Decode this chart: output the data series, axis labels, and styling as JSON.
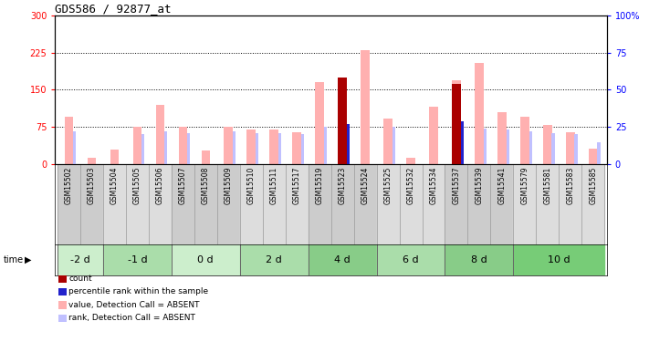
{
  "title": "GDS586 / 92877_at",
  "samples": [
    "GSM15502",
    "GSM15503",
    "GSM15504",
    "GSM15505",
    "GSM15506",
    "GSM15507",
    "GSM15508",
    "GSM15509",
    "GSM15510",
    "GSM15511",
    "GSM15517",
    "GSM15519",
    "GSM15523",
    "GSM15524",
    "GSM15525",
    "GSM15532",
    "GSM15534",
    "GSM15537",
    "GSM15539",
    "GSM15541",
    "GSM15579",
    "GSM15581",
    "GSM15583",
    "GSM15585"
  ],
  "time_groups": [
    {
      "label": "-2 d",
      "indices": [
        0,
        1
      ]
    },
    {
      "label": "-1 d",
      "indices": [
        2,
        3,
        4
      ]
    },
    {
      "label": "0 d",
      "indices": [
        5,
        6,
        7
      ]
    },
    {
      "label": "2 d",
      "indices": [
        8,
        9,
        10
      ]
    },
    {
      "label": "4 d",
      "indices": [
        11,
        12,
        13
      ]
    },
    {
      "label": "6 d",
      "indices": [
        14,
        15,
        16
      ]
    },
    {
      "label": "8 d",
      "indices": [
        17,
        18,
        19
      ]
    },
    {
      "label": "10 d",
      "indices": [
        20,
        21,
        22,
        23
      ]
    }
  ],
  "value_absent": [
    95,
    12,
    30,
    75,
    120,
    75,
    28,
    75,
    70,
    70,
    65,
    165,
    175,
    230,
    92,
    12,
    115,
    170,
    205,
    105,
    95,
    80,
    65,
    32
  ],
  "rank_absent": [
    22,
    0,
    0,
    20,
    22,
    21,
    0,
    22,
    21,
    21,
    20,
    25,
    25,
    0,
    25,
    0,
    0,
    22,
    24,
    23,
    22,
    21,
    20,
    15
  ],
  "count": [
    0,
    0,
    0,
    0,
    0,
    0,
    0,
    0,
    0,
    0,
    0,
    0,
    175,
    0,
    0,
    0,
    0,
    162,
    0,
    0,
    0,
    0,
    0,
    0
  ],
  "pct_rank": [
    0,
    0,
    0,
    0,
    0,
    0,
    0,
    0,
    0,
    0,
    0,
    0,
    27,
    0,
    0,
    0,
    0,
    29,
    0,
    0,
    0,
    0,
    0,
    0
  ],
  "ylim_left": [
    0,
    300
  ],
  "ylim_right": [
    0,
    100
  ],
  "yticks_left": [
    0,
    75,
    150,
    225,
    300
  ],
  "yticks_right": [
    0,
    25,
    50,
    75,
    100
  ],
  "color_count": "#aa0000",
  "color_pct": "#2222cc",
  "color_value_absent": "#ffb0b0",
  "color_rank_absent": "#c0c0ff",
  "legend_items": [
    {
      "color": "#aa0000",
      "label": "count"
    },
    {
      "color": "#2222cc",
      "label": "percentile rank within the sample"
    },
    {
      "color": "#ffb0b0",
      "label": "value, Detection Call = ABSENT"
    },
    {
      "color": "#c0c0ff",
      "label": "rank, Detection Call = ABSENT"
    }
  ],
  "label_bg_colors": [
    "#cccccc",
    "#dddddd",
    "#cccccc",
    "#dddddd",
    "#cccccc",
    "#dddddd",
    "#cccccc",
    "#dddddd"
  ],
  "time_bg_colors": [
    "#cceecc",
    "#aaddaa",
    "#cceecc",
    "#aaddaa",
    "#88cc88",
    "#aaddaa",
    "#88cc88",
    "#77cc77"
  ]
}
